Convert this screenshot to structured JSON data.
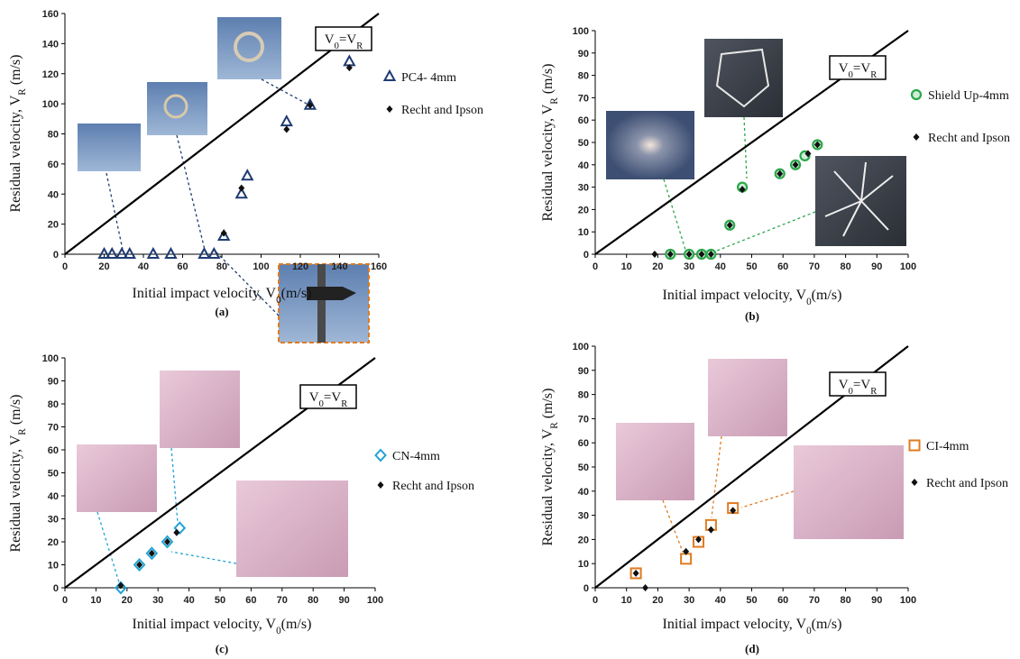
{
  "chart_data": [
    {
      "type": "scatter",
      "caption": "(a)",
      "xlabel": [
        "Initial impact velocity, V",
        "0",
        "(m/s)"
      ],
      "ylabel": [
        "Residual velocity,  V",
        "R",
        " (m/s)"
      ],
      "annotation": [
        "V",
        "0",
        "=V",
        "R"
      ],
      "identity_line": true,
      "xlim": [
        0,
        160
      ],
      "ylim": [
        0,
        160
      ],
      "xticks": [
        0,
        20,
        40,
        60,
        80,
        100,
        120,
        140,
        160
      ],
      "yticks": [
        0,
        20,
        40,
        60,
        80,
        100,
        120,
        140,
        160
      ],
      "series": [
        {
          "name": "PC4- 4mm",
          "color": "#1f3b73",
          "marker": "triangle",
          "x": [
            20,
            24,
            29,
            33,
            45,
            54,
            71,
            76,
            81,
            90,
            93,
            113,
            125,
            145
          ],
          "values": [
            0,
            0,
            0,
            0,
            0,
            0,
            0,
            0,
            12,
            40,
            52,
            88,
            99,
            128
          ]
        },
        {
          "name": "Recht and Ipson",
          "color": "#111111",
          "marker": "diamond",
          "x": [
            81,
            90,
            113,
            125,
            145
          ],
          "values": [
            14,
            44,
            83,
            99,
            124
          ]
        }
      ]
    },
    {
      "type": "scatter",
      "caption": "(b)",
      "xlabel": [
        "Initial impact velocity, V",
        "0",
        "(m/s)"
      ],
      "ylabel": [
        "Residual velocity,  V",
        "R",
        " (m/s)"
      ],
      "annotation": [
        "V",
        "0",
        "=V",
        "R"
      ],
      "identity_line": true,
      "xlim": [
        0,
        100
      ],
      "ylim": [
        0,
        100
      ],
      "xticks": [
        0,
        10,
        20,
        30,
        40,
        50,
        60,
        70,
        80,
        90,
        100
      ],
      "yticks": [
        0,
        10,
        20,
        30,
        40,
        50,
        60,
        70,
        80,
        90,
        100
      ],
      "series": [
        {
          "name": "Shield Up-4mm",
          "color": "#2aa84a",
          "marker": "circle",
          "x": [
            24,
            30,
            34,
            37,
            43,
            47,
            59,
            64,
            67,
            71
          ],
          "values": [
            0,
            0,
            0,
            0,
            13,
            30,
            36,
            40,
            44,
            49
          ]
        },
        {
          "name": "Recht and Ipson",
          "color": "#111111",
          "marker": "diamond",
          "x": [
            19,
            24,
            30,
            34,
            37,
            43,
            47,
            59,
            64,
            68,
            71
          ],
          "values": [
            0,
            0,
            0,
            0,
            0,
            13,
            29,
            36,
            40,
            45,
            49
          ]
        }
      ]
    },
    {
      "type": "scatter",
      "caption": "(c)",
      "xlabel": [
        "Initial impact velocity, V",
        "0",
        "(m/s)"
      ],
      "ylabel": [
        "Residual velocity,  V",
        "R",
        " (m/s)"
      ],
      "annotation": [
        "V",
        "0",
        "=V",
        "R"
      ],
      "identity_line": true,
      "xlim": [
        0,
        100
      ],
      "ylim": [
        0,
        100
      ],
      "xticks": [
        0,
        10,
        20,
        30,
        40,
        50,
        60,
        70,
        80,
        90,
        100
      ],
      "yticks": [
        0,
        10,
        20,
        30,
        40,
        50,
        60,
        70,
        80,
        90,
        100
      ],
      "series": [
        {
          "name": "CN-4mm",
          "color": "#1fa3d6",
          "marker": "diamond-open",
          "x": [
            18,
            24,
            28,
            33,
            37
          ],
          "values": [
            0,
            10,
            15,
            20,
            26
          ]
        },
        {
          "name": "Recht and Ipson",
          "color": "#111111",
          "marker": "diamond",
          "x": [
            18,
            24,
            28,
            33,
            36
          ],
          "values": [
            1,
            10,
            15,
            20,
            24
          ]
        }
      ]
    },
    {
      "type": "scatter",
      "caption": "(d)",
      "xlabel": [
        "Initial impact velocity, V",
        "0",
        "(m/s)"
      ],
      "ylabel": [
        "Residual velocity,  V",
        "R",
        " (m/s)"
      ],
      "annotation": [
        "V",
        "0",
        "=V",
        "R"
      ],
      "identity_line": true,
      "xlim": [
        0,
        100
      ],
      "ylim": [
        0,
        100
      ],
      "xticks": [
        0,
        10,
        20,
        30,
        40,
        50,
        60,
        70,
        80,
        90,
        100
      ],
      "yticks": [
        0,
        10,
        20,
        30,
        40,
        50,
        60,
        70,
        80,
        90,
        100
      ],
      "series": [
        {
          "name": "CI-4mm",
          "color": "#e07b20",
          "marker": "square",
          "x": [
            13,
            29,
            33,
            37,
            44
          ],
          "values": [
            6,
            12,
            19,
            26,
            33
          ]
        },
        {
          "name": "Recht and Ipson",
          "color": "#111111",
          "marker": "diamond",
          "x": [
            13,
            16,
            29,
            33,
            37,
            44
          ],
          "values": [
            6,
            0,
            15,
            20,
            24,
            32
          ]
        }
      ]
    }
  ]
}
